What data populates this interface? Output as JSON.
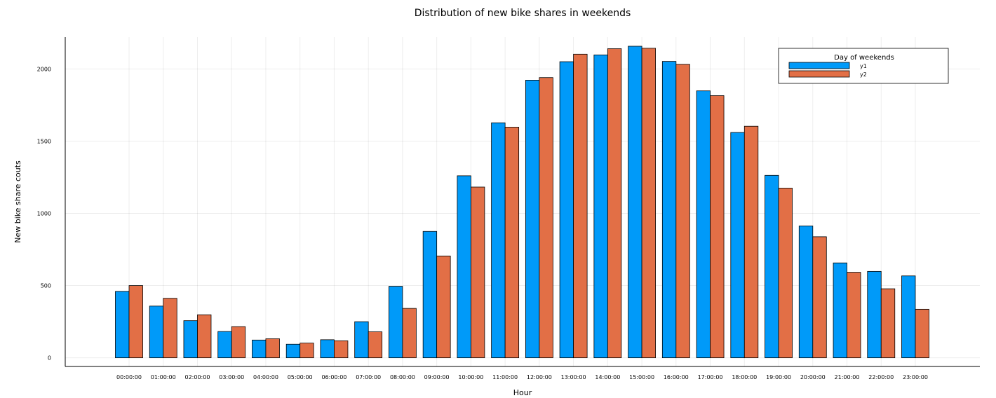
{
  "chart_data": {
    "type": "bar",
    "title": "Distribution of new bike shares in weekends",
    "xlabel": "Hour",
    "ylabel": "New bike share couts",
    "categories": [
      "00:00:00",
      "01:00:00",
      "02:00:00",
      "03:00:00",
      "04:00:00",
      "05:00:00",
      "06:00:00",
      "07:00:00",
      "08:00:00",
      "09:00:00",
      "10:00:00",
      "11:00:00",
      "12:00:00",
      "13:00:00",
      "14:00:00",
      "15:00:00",
      "16:00:00",
      "17:00:00",
      "18:00:00",
      "19:00:00",
      "20:00:00",
      "21:00:00",
      "22:00:00",
      "23:00:00"
    ],
    "series": [
      {
        "name": "y1",
        "color": "#009af9",
        "values": [
          460,
          358,
          257,
          182,
          123,
          94,
          125,
          250,
          495,
          875,
          1260,
          1627,
          1922,
          2050,
          2097,
          2157,
          2052,
          1848,
          1560,
          1263,
          913,
          657,
          598,
          567
        ]
      },
      {
        "name": "y2",
        "color": "#e26f46",
        "values": [
          500,
          412,
          298,
          216,
          132,
          102,
          118,
          180,
          342,
          705,
          1182,
          1597,
          1940,
          2102,
          2140,
          2143,
          2032,
          1815,
          1603,
          1175,
          838,
          592,
          478,
          336
        ]
      }
    ],
    "yticks": [
      0,
      500,
      1000,
      1500,
      2000
    ],
    "ylim": [
      -60,
      2220
    ],
    "grid": true,
    "legend": {
      "title": "Day of weekends",
      "position": "top-right"
    }
  }
}
